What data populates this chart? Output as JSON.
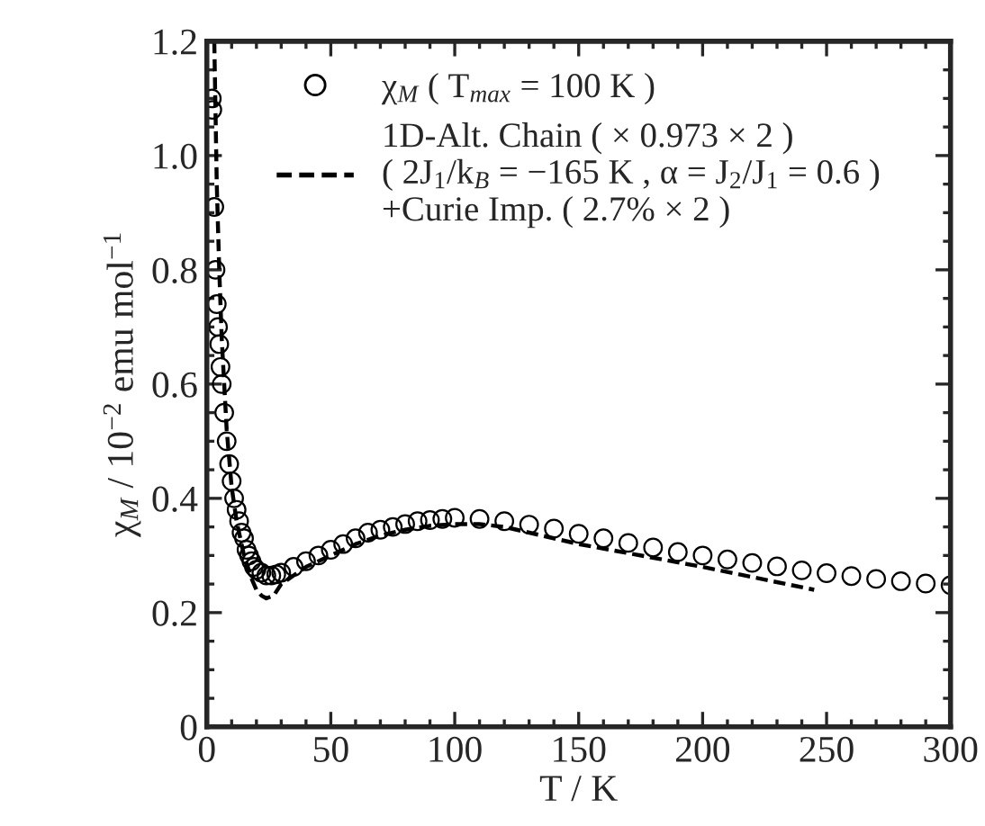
{
  "chart_data": {
    "type": "scatter",
    "xlabel": "T / K",
    "ylabel": "χ$_{M}$ / 10$^{−2}$ emu mol$^{−1}$",
    "xlim": [
      0,
      300
    ],
    "xticks": [
      0,
      50,
      100,
      150,
      200,
      250,
      300
    ],
    "ylim": [
      0,
      1.2
    ],
    "yticks": [
      {
        "value": 0,
        "label": "0"
      },
      {
        "value": 0.2,
        "label": "0.2"
      },
      {
        "value": 0.4,
        "label": "0.4"
      },
      {
        "value": 0.6,
        "label": "0.6"
      },
      {
        "value": 0.8,
        "label": "0.8"
      },
      {
        "value": 1.0,
        "label": "1.0"
      },
      {
        "value": 1.2,
        "label": "1.2"
      }
    ],
    "grid": false,
    "legend": "top",
    "series": [
      {
        "name": "χ$_{M}$ ( T$_{max}$ = 100 K )",
        "marker": "circle",
        "color": "#000000",
        "x": [
          2,
          2.2,
          3,
          3.5,
          4,
          4.5,
          5,
          5.5,
          6,
          7,
          8,
          9,
          10,
          11,
          12,
          13,
          14,
          15,
          16,
          17,
          18,
          19,
          20,
          22,
          24,
          26,
          28,
          30,
          35,
          40,
          45,
          50,
          55,
          60,
          65,
          70,
          75,
          80,
          85,
          90,
          95,
          100,
          110,
          120,
          130,
          140,
          150,
          160,
          170,
          180,
          190,
          200,
          210,
          220,
          230,
          240,
          250,
          260,
          270,
          280,
          290,
          300
        ],
        "values": [
          1.1,
          1.08,
          0.91,
          0.8,
          0.74,
          0.7,
          0.67,
          0.63,
          0.6,
          0.55,
          0.5,
          0.46,
          0.43,
          0.4,
          0.38,
          0.36,
          0.34,
          0.33,
          0.31,
          0.3,
          0.29,
          0.28,
          0.275,
          0.27,
          0.265,
          0.265,
          0.267,
          0.27,
          0.28,
          0.29,
          0.3,
          0.31,
          0.32,
          0.33,
          0.34,
          0.345,
          0.35,
          0.355,
          0.36,
          0.362,
          0.364,
          0.366,
          0.364,
          0.36,
          0.354,
          0.347,
          0.338,
          0.33,
          0.322,
          0.314,
          0.306,
          0.3,
          0.293,
          0.287,
          0.281,
          0.274,
          0.269,
          0.264,
          0.259,
          0.255,
          0.251,
          0.248
        ]
      },
      {
        "name": "1D-Alt. Chain ( × 0.973 × 2 )\n( 2J$_{1}$/k$_{B}$ = −165 K , α = J$_{2}$/J$_{1}$ = 0.6 )\n+Curie Imp. ( 2.7% × 2 )",
        "type": "line",
        "marker": "none",
        "line_style": "dashed",
        "color": "#000000",
        "x": [
          3,
          4,
          5,
          6,
          8,
          10,
          12,
          15,
          18,
          20,
          22,
          24,
          27,
          30,
          40,
          50,
          60,
          70,
          80,
          90,
          100,
          110,
          120,
          150,
          200,
          245
        ],
        "values": [
          1.2,
          0.95,
          0.8,
          0.68,
          0.52,
          0.42,
          0.36,
          0.3,
          0.26,
          0.24,
          0.23,
          0.225,
          0.23,
          0.25,
          0.28,
          0.3,
          0.32,
          0.335,
          0.345,
          0.352,
          0.355,
          0.355,
          0.35,
          0.32,
          0.28,
          0.24
        ]
      }
    ]
  }
}
